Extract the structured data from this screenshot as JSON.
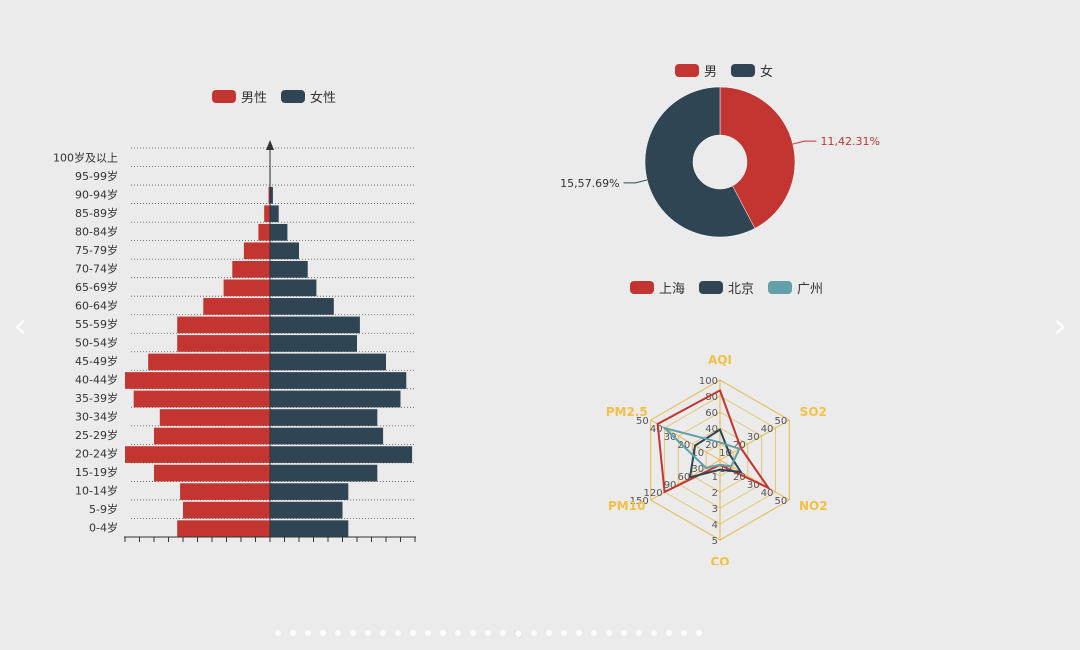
{
  "colors": {
    "male": "#c23531",
    "female": "#2f4554",
    "guangzhou": "#61a0a8",
    "radar_axis": "#f3c044",
    "background": "#ebebeb"
  },
  "navigation": {
    "prev_icon": "chevron-left-icon",
    "next_icon": "chevron-right-icon",
    "prev_glyph": "‹",
    "next_glyph": "›",
    "dot_count": 29,
    "active_dot": 16
  },
  "chart_data": [
    {
      "type": "bar",
      "orientation": "horizontal",
      "legend": [
        "男性",
        "女性"
      ],
      "categories": [
        "0-4岁",
        "5-9岁",
        "10-14岁",
        "15-19岁",
        "20-24岁",
        "25-29岁",
        "30-34岁",
        "35-39岁",
        "40-44岁",
        "45-49岁",
        "50-54岁",
        "55-59岁",
        "60-64岁",
        "65-69岁",
        "70-74岁",
        "75-79岁",
        "80-84岁",
        "85-89岁",
        "90-94岁",
        "95-99岁",
        "100岁及以上"
      ],
      "series": [
        {
          "name": "男性",
          "values": [
            -32,
            -30,
            -31,
            -40,
            -50,
            -40,
            -38,
            -47,
            -50,
            -42,
            -32,
            -32,
            -23,
            -16,
            -13,
            -9,
            -4,
            -2,
            -0.5,
            -0.1,
            0
          ]
        },
        {
          "name": "女性",
          "values": [
            27,
            25,
            27,
            37,
            49,
            39,
            37,
            45,
            47,
            40,
            30,
            31,
            22,
            16,
            13,
            10,
            6,
            3,
            1,
            0.2,
            0
          ]
        }
      ],
      "xlim": [
        -50,
        50
      ]
    },
    {
      "type": "pie",
      "donut": true,
      "legend": [
        "男",
        "女"
      ],
      "slices": [
        {
          "name": "男",
          "value": 11,
          "label": "11,42.31%"
        },
        {
          "name": "女",
          "value": 15,
          "label": "15,57.69%"
        }
      ]
    },
    {
      "type": "radar",
      "legend": [
        "上海",
        "北京",
        "广州"
      ],
      "indicators": [
        {
          "name": "AQI",
          "max": 100,
          "ticks": [
            "20",
            "40",
            "60",
            "80",
            "100"
          ]
        },
        {
          "name": "SO2",
          "max": 50,
          "ticks": [
            "10",
            "20",
            "30",
            "40",
            "50"
          ]
        },
        {
          "name": "NO2",
          "max": 50,
          "ticks": [
            "10",
            "20",
            "30",
            "40",
            "50"
          ]
        },
        {
          "name": "CO",
          "max": 5,
          "ticks": [
            "1",
            "2",
            "3",
            "4",
            "5"
          ]
        },
        {
          "name": "PM10",
          "max": 150,
          "ticks": [
            "30",
            "60",
            "90",
            "120",
            "150"
          ]
        },
        {
          "name": "PM2.5",
          "max": 50,
          "ticks": [
            "10",
            "20",
            "30",
            "40",
            "50"
          ]
        }
      ],
      "series": [
        {
          "name": "上海",
          "values": [
            87,
            15,
            35,
            0.3,
            120,
            45
          ]
        },
        {
          "name": "北京",
          "values": [
            38,
            7,
            15,
            0.6,
            65,
            18
          ]
        },
        {
          "name": "广州",
          "values": [
            22,
            14,
            8,
            0.3,
            30,
            40
          ]
        }
      ]
    }
  ]
}
